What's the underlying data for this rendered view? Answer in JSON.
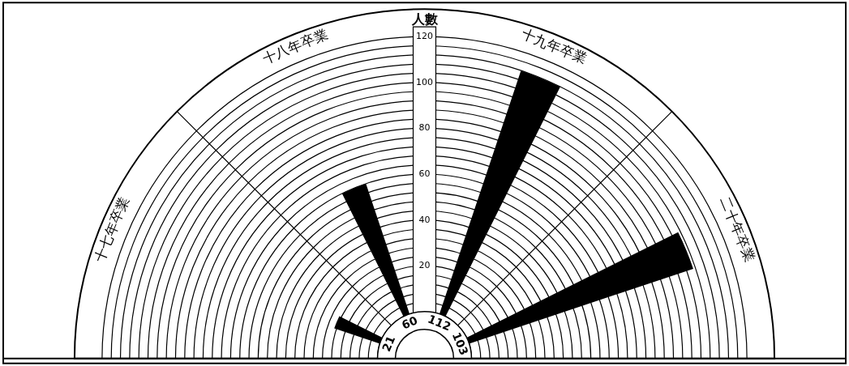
{
  "chart_data": {
    "type": "other",
    "categories": [
      "十七年卒業",
      "十八年卒業",
      "十九年卒業",
      "二十年卒業"
    ],
    "values": [
      21,
      60,
      112,
      103
    ],
    "color": "#000000",
    "ylabel": "人數",
    "annotations": [
      "20",
      "40",
      "60",
      "80",
      "100",
      "120"
    ],
    "data_labels": true
  }
}
